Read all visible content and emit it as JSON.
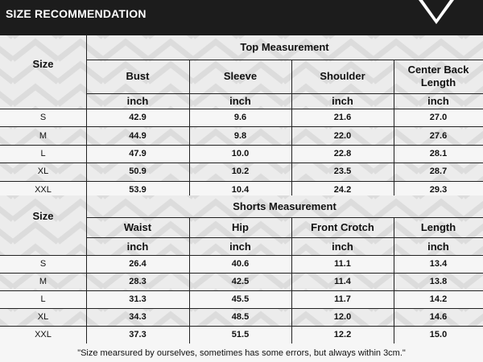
{
  "header": {
    "title": "SIZE RECOMMENDATION"
  },
  "top": {
    "title": "Top Measurement",
    "size_label": "Size",
    "columns": [
      "Bust",
      "Sleeve",
      "Shoulder",
      "Center Back Length"
    ],
    "unit": "inch",
    "rows": [
      {
        "size": "S",
        "values": [
          "42.9",
          "9.6",
          "21.6",
          "27.0"
        ]
      },
      {
        "size": "M",
        "values": [
          "44.9",
          "9.8",
          "22.0",
          "27.6"
        ]
      },
      {
        "size": "L",
        "values": [
          "47.9",
          "10.0",
          "22.8",
          "28.1"
        ]
      },
      {
        "size": "XL",
        "values": [
          "50.9",
          "10.2",
          "23.5",
          "28.7"
        ]
      },
      {
        "size": "XXL",
        "values": [
          "53.9",
          "10.4",
          "24.2",
          "29.3"
        ]
      }
    ]
  },
  "shorts": {
    "title": "Shorts Measurement",
    "size_label": "Size",
    "columns": [
      "Waist",
      "Hip",
      "Front Crotch",
      "Length"
    ],
    "unit": "inch",
    "rows": [
      {
        "size": "S",
        "values": [
          "26.4",
          "40.6",
          "11.1",
          "13.4"
        ]
      },
      {
        "size": "M",
        "values": [
          "28.3",
          "42.5",
          "11.4",
          "13.8"
        ]
      },
      {
        "size": "L",
        "values": [
          "31.3",
          "45.5",
          "11.7",
          "14.2"
        ]
      },
      {
        "size": "XL",
        "values": [
          "34.3",
          "48.5",
          "12.0",
          "14.6"
        ]
      },
      {
        "size": "XXL",
        "values": [
          "37.3",
          "51.5",
          "12.2",
          "15.0"
        ]
      }
    ]
  },
  "footer": {
    "note": "\"Size mearsured by ourselves, sometimes has some errors, but always within 3cm.\""
  },
  "colors": {
    "header_bg": "#1c1c1c",
    "table_bg": "#ececec",
    "line": "#222222"
  }
}
